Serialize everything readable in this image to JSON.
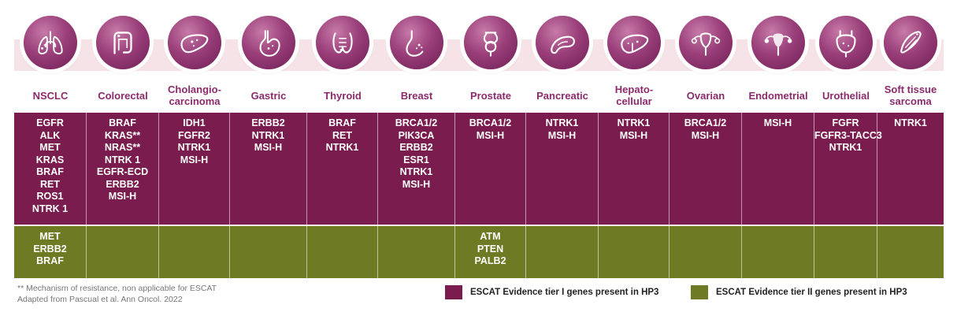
{
  "cancers": [
    {
      "name": "NSCLC",
      "icon": "lungs-icon",
      "tier1": [
        "EGFR",
        "ALK",
        "MET",
        "KRAS",
        "BRAF",
        "RET",
        "ROS1",
        "NTRK 1"
      ],
      "tier2": [
        "MET",
        "ERBB2",
        "BRAF"
      ]
    },
    {
      "name": "Colorectal",
      "icon": "colon-icon",
      "tier1": [
        "BRAF",
        "KRAS**",
        "NRAS**",
        "NTRK 1",
        "EGFR-ECD",
        "ERBB2",
        "MSI-H"
      ],
      "tier2": []
    },
    {
      "name": "Cholangio-\ncarcinoma",
      "icon": "liver-bile-duct-icon",
      "tier1": [
        "IDH1",
        "FGFR2",
        "NTRK1",
        "MSI-H"
      ],
      "tier2": []
    },
    {
      "name": "Gastric",
      "icon": "stomach-icon",
      "tier1": [
        "ERBB2",
        "NTRK1",
        "MSI-H"
      ],
      "tier2": []
    },
    {
      "name": "Thyroid",
      "icon": "thyroid-icon",
      "tier1": [
        "BRAF",
        "RET",
        "NTRK1"
      ],
      "tier2": []
    },
    {
      "name": "Breast",
      "icon": "breast-icon",
      "tier1": [
        "BRCA1/2",
        "PIK3CA",
        "ERBB2",
        "ESR1",
        "NTRK1",
        "MSI-H"
      ],
      "tier2": []
    },
    {
      "name": "Prostate",
      "icon": "prostate-icon",
      "tier1": [
        "BRCA1/2",
        "MSI-H"
      ],
      "tier2": [
        "ATM",
        "PTEN",
        "PALB2"
      ]
    },
    {
      "name": "Pancreatic",
      "icon": "pancreas-icon",
      "tier1": [
        "NTRK1",
        "MSI-H"
      ],
      "tier2": []
    },
    {
      "name": "Hepato-\ncellular",
      "icon": "liver-icon",
      "tier1": [
        "NTRK1",
        "MSI-H"
      ],
      "tier2": []
    },
    {
      "name": "Ovarian",
      "icon": "ovary-icon",
      "tier1": [
        "BRCA1/2",
        "MSI-H"
      ],
      "tier2": []
    },
    {
      "name": "Endometrial",
      "icon": "uterus-icon",
      "tier1": [
        "MSI-H"
      ],
      "tier2": []
    },
    {
      "name": "Urothelial",
      "icon": "bladder-icon",
      "tier1": [
        "FGFR",
        "FGFR3-TACC3",
        "NTRK1"
      ],
      "tier2": []
    },
    {
      "name": "Soft tissue\nsarcoma",
      "icon": "muscle-tissue-icon",
      "tier1": [
        "NTRK1"
      ],
      "tier2": []
    }
  ],
  "footnote": {
    "line1": "** Mechanism of resistance, non applicable for ESCAT",
    "line2": "Adapted from Pascual et al. Ann Oncol. 2022"
  },
  "legend": {
    "tier1_label": "ESCAT Evidence tier I genes present in HP3",
    "tier2_label": "ESCAT Evidence tier II genes present in HP3",
    "tier1_color": "#7a1d4e",
    "tier2_color": "#6f7a25"
  },
  "colors": {
    "header_text": "#8b2b6b",
    "band": "#f6e3e8"
  }
}
